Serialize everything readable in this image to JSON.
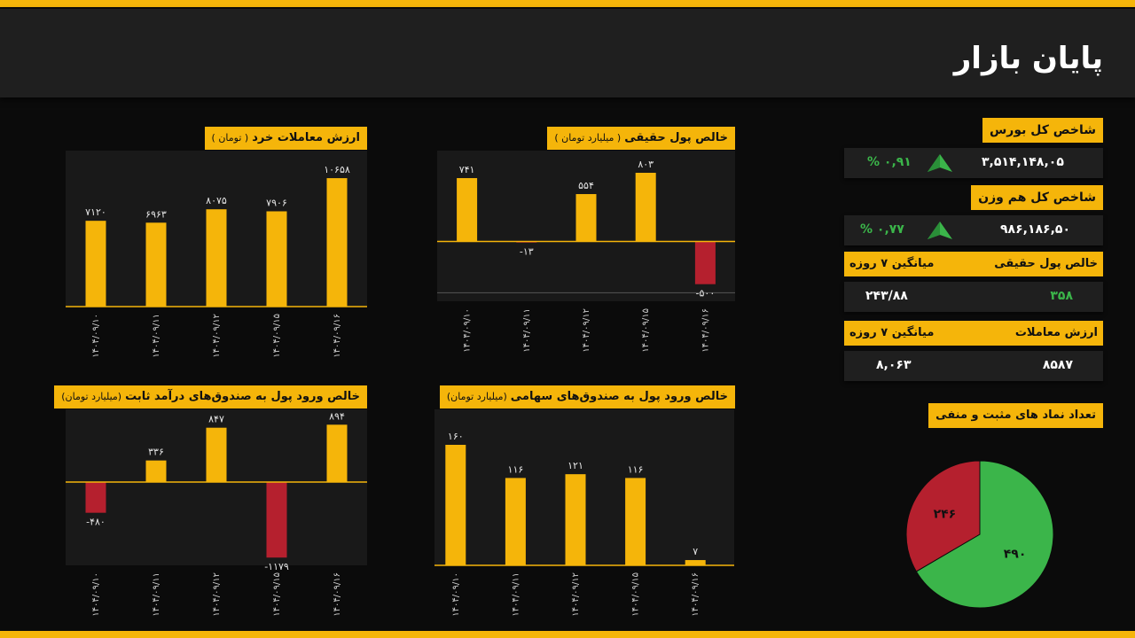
{
  "page": {
    "title": "پایان بازار"
  },
  "colors": {
    "accent": "#f5b50a",
    "negative": "#b5202e",
    "positive": "#3bb54a",
    "pie_negative": "#b5202e",
    "pie_positive": "#3bb54a"
  },
  "side": {
    "index_total": {
      "title": "شاخص کل بورس",
      "value": "۳,۵۱۴,۱۴۸,۰۵",
      "change": "% ۰,۹۱",
      "icon": "up-arrow-icon"
    },
    "index_equal": {
      "title": "شاخص کل هم وزن",
      "value": "۹۸۶,۱۸۶,۵۰",
      "change": "% ۰,۷۷",
      "icon": "up-arrow-icon"
    },
    "real_money": {
      "title": "خالص پول حقیقی",
      "avg_label": "میانگین ۷ روزه",
      "value": "۳۵۸",
      "avg": "۲۴۳/۸۸"
    },
    "trade_value": {
      "title": "ارزش معاملات",
      "avg_label": "میانگین ۷ روزه",
      "value": "۸۵۸۷",
      "avg": "۸,۰۶۳"
    },
    "pie_title": "تعداد نماد های مثبت و منفی"
  },
  "chart_data": [
    {
      "id": "retail_trade_value",
      "type": "bar",
      "title": "ارزش معاملات خرد",
      "unit": "( تومان )",
      "categories": [
        "۱۴۰۴/۰۹/۱۰",
        "۱۴۰۴/۰۹/۱۱",
        "۱۴۰۴/۰۹/۱۲",
        "۱۴۰۴/۰۹/۱۵",
        "۱۴۰۴/۰۹/۱۶"
      ],
      "values": [
        7120,
        6963,
        8075,
        7906,
        10658
      ],
      "labels": [
        "۷۱۲۰",
        "۶۹۶۳",
        "۸۰۷۵",
        "۷۹۰۶",
        "۱۰۶۵۸"
      ],
      "ylim": [
        0,
        12500
      ]
    },
    {
      "id": "real_money_net",
      "type": "bar",
      "title": "خالص پول حقیقی",
      "unit": "( میلیارد تومان )",
      "categories": [
        "۱۴۰۴/۰۹/۱۰",
        "۱۴۰۴/۰۹/۱۱",
        "۱۴۰۴/۰۹/۱۲",
        "۱۴۰۴/۰۹/۱۵",
        "۱۴۰۴/۰۹/۱۶"
      ],
      "values": [
        741,
        -13,
        554,
        803,
        -500
      ],
      "labels": [
        "۷۴۱",
        "-۱۳",
        "۵۵۴",
        "۸۰۳",
        "-۵۰۰"
      ],
      "ylim": [
        -700,
        1000
      ]
    },
    {
      "id": "fixed_income_funds",
      "type": "bar",
      "title": "خالص ورود پول به صندوق‌های درآمد ثابت",
      "unit": "(میلیارد  تومان)",
      "categories": [
        "۱۴۰۴/۰۹/۱۰",
        "۱۴۰۴/۰۹/۱۱",
        "۱۴۰۴/۰۹/۱۲",
        "۱۴۰۴/۰۹/۱۵",
        "۱۴۰۴/۰۹/۱۶"
      ],
      "values": [
        -480,
        336,
        847,
        -1179,
        894
      ],
      "labels": [
        "-۴۸۰",
        "۳۳۶",
        "۸۴۷",
        "-۱۱۷۹",
        "۸۹۴"
      ],
      "ylim": [
        -1300,
        1050
      ]
    },
    {
      "id": "equity_funds",
      "type": "bar",
      "title": "خالص ورود پول به صندوق‌های سهامی",
      "unit": "(میلیارد تومان)",
      "categories": [
        "۱۴۰۴/۰۹/۱۰",
        "۱۴۰۴/۰۹/۱۱",
        "۱۴۰۴/۰۹/۱۲",
        "۱۴۰۴/۰۹/۱۵",
        "۱۴۰۴/۰۹/۱۶"
      ],
      "values": [
        160,
        116,
        121,
        116,
        7
      ],
      "labels": [
        "۱۶۰",
        "۱۱۶",
        "۱۲۱",
        "۱۱۶",
        "۷"
      ],
      "ylim": [
        0,
        200
      ]
    },
    {
      "id": "positive_negative_symbols",
      "type": "pie",
      "title": "تعداد نماد های مثبت و منفی",
      "values": [
        490,
        246
      ],
      "labels": [
        "۴۹۰",
        "۲۴۶"
      ]
    }
  ]
}
